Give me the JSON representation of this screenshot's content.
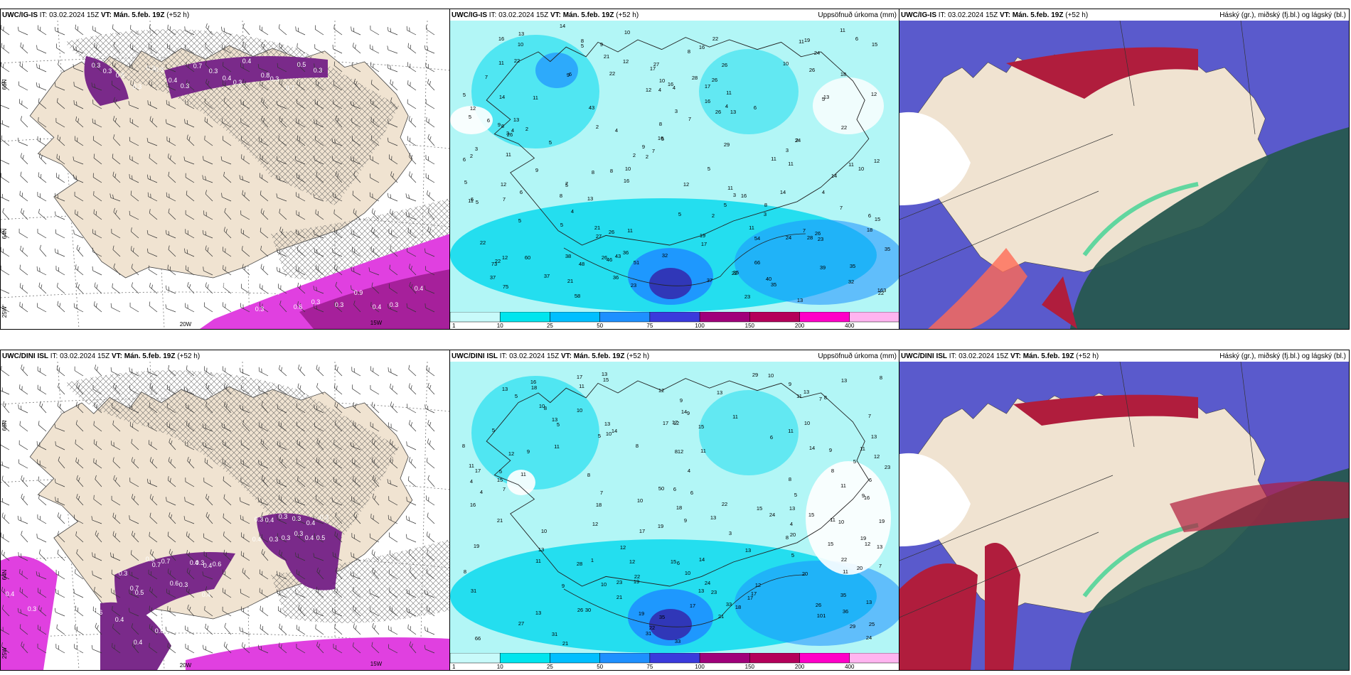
{
  "rows": [
    {
      "model": "UWC/IG-IS",
      "it": "IT: 03.02.2024 15Z",
      "vt_label": "VT:",
      "vt": "Mán. 5.feb. 19Z",
      "lead": "(+52 h)",
      "wind_lat_labels": [
        "66N",
        "64N"
      ],
      "wind_lon_labels": [
        "25W",
        "20W",
        "15W"
      ],
      "precip_labels": [
        "14",
        "11",
        "10",
        "19",
        "16",
        "13",
        "22",
        "5",
        "9",
        "6",
        "11",
        "8",
        "10",
        "15",
        "21",
        "16",
        "22",
        "24",
        "8",
        "26",
        "11",
        "12",
        "10",
        "27",
        "17",
        "18",
        "6",
        "7",
        "22",
        "26",
        "28",
        "10",
        "16",
        "9",
        "17",
        "26",
        "4",
        "5",
        "4",
        "11",
        "14",
        "12",
        "12",
        "11",
        "5",
        "13",
        "16",
        "12",
        "4",
        "13",
        "43",
        "26",
        "6",
        "5",
        "13",
        "6",
        "3",
        "7",
        "8",
        "9",
        "2",
        "4",
        "3",
        "2",
        "8",
        "22",
        "4",
        "5",
        "24",
        "29",
        "16",
        "26",
        "9",
        "2",
        "5",
        "11",
        "3",
        "2",
        "6",
        "11",
        "3",
        "7",
        "2",
        "2",
        "11",
        "12",
        "10",
        "8",
        "11",
        "14",
        "10",
        "9",
        "5",
        "8",
        "12",
        "16",
        "12",
        "5",
        "11",
        "5",
        "7",
        "3",
        "4",
        "6",
        "14",
        "16",
        "6",
        "13",
        "11",
        "8",
        "5",
        "4",
        "7",
        "5",
        "8",
        "6",
        "7",
        "3",
        "5",
        "5",
        "2",
        "15",
        "5",
        "11",
        "7",
        "11",
        "21",
        "18",
        "27",
        "26",
        "24",
        "26",
        "19",
        "17",
        "28",
        "23",
        "54",
        "22",
        "35",
        "32",
        "36",
        "43",
        "38",
        "60",
        "48",
        "46",
        "66",
        "73",
        "12",
        "26",
        "22",
        "39",
        "51",
        "22",
        "35",
        "21",
        "37",
        "35",
        "37",
        "40",
        "36",
        "37",
        "32",
        "23",
        "35",
        "163",
        "75",
        "22",
        "58",
        "13",
        "23"
      ],
      "ice_label": "",
      "precip_title": "Uppsöfnuð úrkoma (mm)",
      "cloud_title": "Háský (gr.), miðský (fj.bl.) og lágský (bl.)",
      "ice_values": [
        "0.3",
        "0.3",
        "0.5",
        "0.3",
        "0.3",
        "0.3",
        "0.4",
        "0.3",
        "0.7",
        "0.3",
        "0.4",
        "0.3",
        "0.4",
        "0.8",
        "0.3",
        "0.7",
        "0.5",
        "0.3",
        "0.6",
        "0.7",
        "0.3",
        "0.4",
        "0.6",
        "0.3",
        "0.3",
        "0.9",
        "0.4",
        "0.3",
        "0.4"
      ]
    },
    {
      "model": "UWC/DINI ISL",
      "it": "IT: 03.02.2024 15Z",
      "vt_label": "VT:",
      "vt": "Mán. 5.feb. 19Z",
      "lead": "(+52 h)",
      "wind_lat_labels": [
        "66N",
        "64N"
      ],
      "wind_lon_labels": [
        "25W",
        "20W",
        "15W"
      ],
      "precip_labels": [
        "17",
        "29",
        "13",
        "15",
        "13",
        "10",
        "16",
        "8",
        "9",
        "13",
        "11",
        "13",
        "12",
        "5",
        "18",
        "13",
        "8",
        "10",
        "7",
        "11",
        "8",
        "9",
        "10",
        "9",
        "7",
        "11",
        "14",
        "17",
        "13",
        "12",
        "17",
        "13",
        "10",
        "5",
        "10",
        "11",
        "5",
        "15",
        "6",
        "14",
        "5",
        "8",
        "8",
        "13",
        "11",
        "11",
        "14",
        "9",
        "9",
        "11",
        "12",
        "12",
        "8",
        "11",
        "12",
        "23",
        "5",
        "8",
        "17",
        "11",
        "4",
        "6",
        "4",
        "8",
        "5",
        "11",
        "6",
        "8",
        "15",
        "50",
        "7",
        "9",
        "6",
        "7",
        "5",
        "4",
        "10",
        "16",
        "18",
        "22",
        "13",
        "15",
        "16",
        "13",
        "18",
        "19",
        "24",
        "21",
        "15",
        "9",
        "4",
        "11",
        "12",
        "10",
        "19",
        "17",
        "20",
        "19",
        "10",
        "8",
        "3",
        "12",
        "13",
        "15",
        "19",
        "12",
        "13",
        "5",
        "13",
        "1",
        "6",
        "12",
        "11",
        "14",
        "22",
        "20",
        "28",
        "15",
        "11",
        "7",
        "10",
        "22",
        "8",
        "10",
        "20",
        "12",
        "9",
        "19",
        "23",
        "24",
        "13",
        "21",
        "17",
        "23",
        "31",
        "35",
        "26",
        "17",
        "17",
        "33",
        "18",
        "13",
        "30",
        "26",
        "35",
        "13",
        "36",
        "19",
        "21",
        "101",
        "27",
        "29",
        "22",
        "25",
        "31",
        "66",
        "31",
        "33",
        "24",
        "21"
      ],
      "ice_label": "",
      "precip_title": "Uppsöfnuð úrkoma (mm)",
      "cloud_title": "Háský (gr.), miðský (fj.bl.) og lágský (bl.)",
      "ice_values": [
        "0.3",
        "0.4",
        "0.3",
        "0.3",
        "0.4",
        "0.3",
        "0.4",
        "0.3",
        "0.3",
        "0.3",
        "0.4",
        "0.5",
        "0.3",
        "0.7",
        "0.5",
        "0.3",
        "0.7",
        "0.7",
        "0.6",
        "0.3",
        "0.4",
        "0.3",
        "0.4",
        "0.6",
        "0.4",
        "0.3",
        "0.4",
        "0.4",
        "0.6",
        "0.4",
        "0.4",
        "0.6",
        "0.4",
        "0.4"
      ]
    }
  ],
  "colorbar": {
    "ticks": [
      "1",
      "10",
      "25",
      "50",
      "75",
      "100",
      "150",
      "200",
      "400"
    ],
    "colors": [
      "#c8fafa",
      "#00e5ee",
      "#00bfff",
      "#1e90ff",
      "#3a3adc",
      "#a0007a",
      "#b4005a",
      "#ff00c8",
      "#ffb4f0"
    ]
  },
  "palette": {
    "land": "#f0e3d1",
    "sea": "#ffffff",
    "ice_pink": "#e040e0",
    "ice_purple": "#7a2a8a",
    "precip_light": "#b2f6f6",
    "precip_mid": "#00d8ee",
    "precip_blue": "#1e90ff",
    "precip_dark": "#3232b4",
    "cloud_high": "#b01d3d",
    "cloud_mid": "#5a5acc",
    "cloud_low": "#27584f",
    "cloud_green": "#23d08a",
    "cloud_white": "#ffffff"
  }
}
